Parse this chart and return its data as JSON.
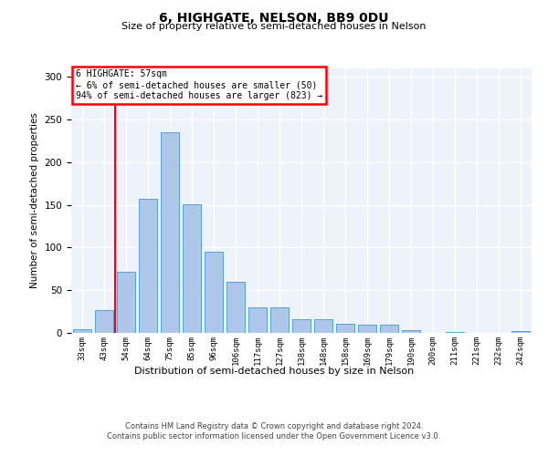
{
  "title": "6, HIGHGATE, NELSON, BB9 0DU",
  "subtitle": "Size of property relative to semi-detached houses in Nelson",
  "xlabel": "Distribution of semi-detached houses by size in Nelson",
  "ylabel": "Number of semi-detached properties",
  "footer_line1": "Contains HM Land Registry data © Crown copyright and database right 2024.",
  "footer_line2": "Contains public sector information licensed under the Open Government Licence v3.0.",
  "annotation_title": "6 HIGHGATE: 57sqm",
  "annotation_line1": "← 6% of semi-detached houses are smaller (50)",
  "annotation_line2": "94% of semi-detached houses are larger (823) →",
  "bar_labels": [
    "33sqm",
    "43sqm",
    "54sqm",
    "64sqm",
    "75sqm",
    "85sqm",
    "96sqm",
    "106sqm",
    "117sqm",
    "127sqm",
    "138sqm",
    "148sqm",
    "158sqm",
    "169sqm",
    "179sqm",
    "190sqm",
    "200sqm",
    "211sqm",
    "221sqm",
    "232sqm",
    "242sqm"
  ],
  "bar_values": [
    4,
    27,
    72,
    157,
    235,
    151,
    95,
    60,
    30,
    30,
    16,
    16,
    11,
    10,
    10,
    3,
    0,
    1,
    0,
    0,
    2
  ],
  "bar_color": "#aec6e8",
  "bar_edge_color": "#5a9fd4",
  "red_line_x": 1.5,
  "ylim": [
    0,
    310
  ],
  "background_color": "#eef2fa",
  "grid_color": "#ffffff",
  "box_color": "#cc0000"
}
